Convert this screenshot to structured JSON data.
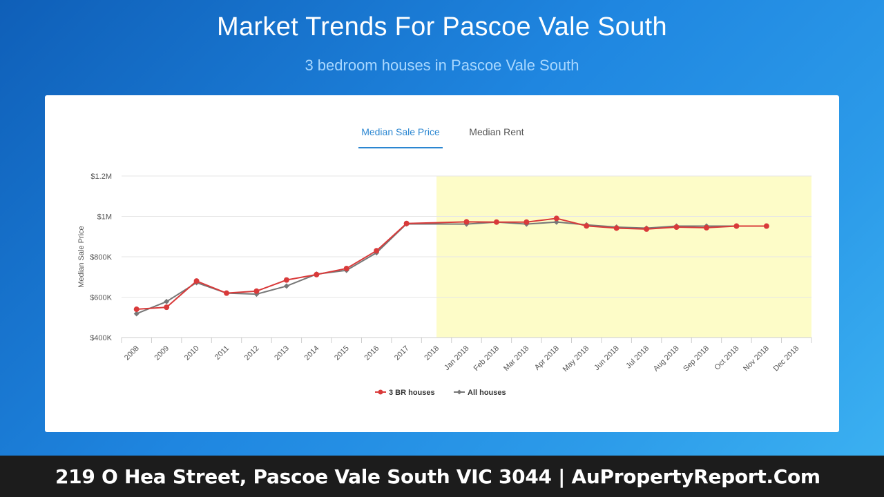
{
  "header": {
    "title": "Market Trends For Pascoe Vale South",
    "subtitle": "3 bedroom houses in Pascoe Vale South"
  },
  "tabs": [
    {
      "label": "Median Sale Price",
      "active": true
    },
    {
      "label": "Median Rent",
      "active": false
    }
  ],
  "footer": {
    "text": "219 O Hea Street, Pascoe Vale South VIC 3044 | AuPropertyReport.Com"
  },
  "colors": {
    "accent": "#2a86d1",
    "series_3br": "#d93a3a",
    "series_all": "#777777",
    "highlight": "#fdfcc8"
  },
  "chart_data": {
    "type": "line",
    "ylabel": "Median Sale Price",
    "xlabel": "",
    "ylim": [
      400000,
      1200000
    ],
    "yticks": [
      400000,
      600000,
      800000,
      1000000,
      1200000
    ],
    "ytick_labels": [
      "$400K",
      "$600K",
      "$800K",
      "$1M",
      "$1.2M"
    ],
    "categories": [
      "2008",
      "2009",
      "2010",
      "2011",
      "2012",
      "2013",
      "2014",
      "2015",
      "2016",
      "2017",
      "2018",
      "Jan 2018",
      "Feb 2018",
      "Mar 2018",
      "Apr 2018",
      "May 2018",
      "Jun 2018",
      "Jul 2018",
      "Aug 2018",
      "Sep 2018",
      "Oct 2018",
      "Nov 2018",
      "Dec 2018"
    ],
    "highlight_range": [
      "2018",
      "Dec 2018"
    ],
    "grid": true,
    "legend_position": "bottom",
    "series": [
      {
        "name": "3 BR houses",
        "color": "#d93a3a",
        "marker": "circle",
        "values": [
          540000,
          550000,
          680000,
          620000,
          630000,
          685000,
          712000,
          742000,
          830000,
          965000,
          null,
          973000,
          972000,
          972000,
          990000,
          953000,
          942000,
          937000,
          947000,
          944000,
          952000,
          952000,
          null
        ]
      },
      {
        "name": "All houses",
        "color": "#777777",
        "marker": "diamond",
        "values": [
          518000,
          578000,
          672000,
          620000,
          615000,
          655000,
          714000,
          733000,
          820000,
          963000,
          null,
          962000,
          972000,
          962000,
          972000,
          958000,
          947000,
          942000,
          952000,
          952000,
          952000,
          952000,
          null
        ]
      }
    ]
  }
}
